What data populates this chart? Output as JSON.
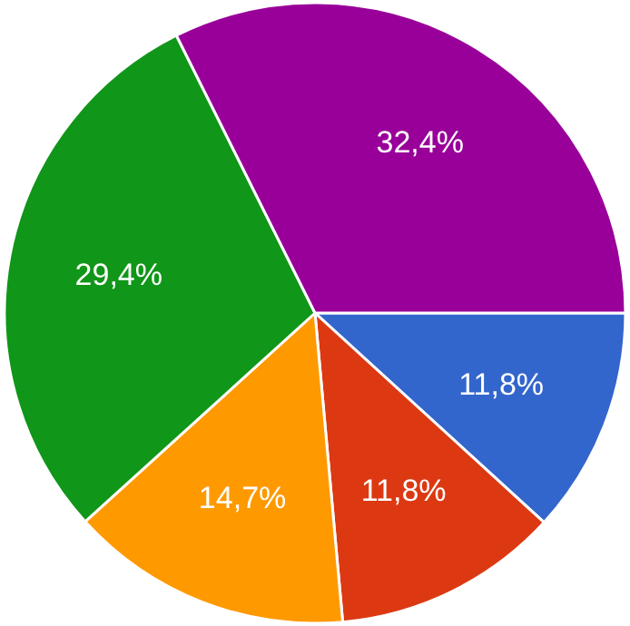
{
  "chart_data": {
    "type": "pie",
    "categories": [
      null,
      null,
      null,
      null,
      null
    ],
    "values": [
      11.8,
      11.8,
      14.7,
      29.4,
      32.4
    ],
    "colors": [
      "#3366cc",
      "#dc3912",
      "#ff9900",
      "#109618",
      "#990099"
    ],
    "value_labels": [
      "11,8%",
      "11,8%",
      "14,7%",
      "29,4%",
      "32,4%"
    ]
  }
}
